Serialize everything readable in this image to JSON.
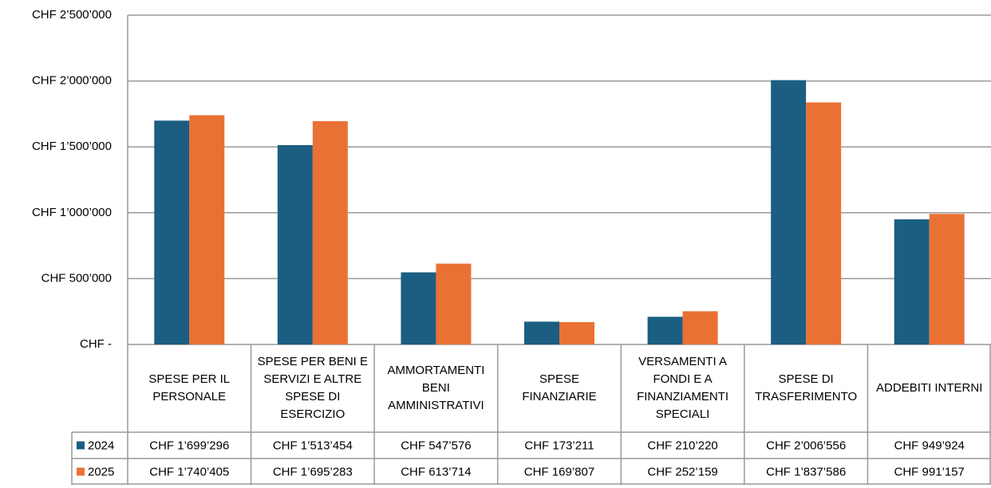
{
  "chart_data": {
    "type": "bar",
    "categories": [
      "SPESE PER IL PERSONALE",
      "SPESE PER BENI E SERVIZI E ALTRE SPESE DI ESERCIZIO",
      "AMMORTAMENTI BENI AMMINISTRATIVI",
      "SPESE FINANZIARIE",
      "VERSAMENTI A FONDI E A FINANZIAMENTI SPECIALI",
      "SPESE DI TRASFERIMENTO",
      "ADDEBITI INTERNI"
    ],
    "series": [
      {
        "name": "2024",
        "color": "#1b5e82",
        "values": [
          1699296,
          1513454,
          547576,
          173211,
          210220,
          2006556,
          949924
        ],
        "value_labels": [
          "CHF 1’699’296",
          "CHF 1’513’454",
          "CHF 547’576",
          "CHF 173’211",
          "CHF 210’220",
          "CHF 2’006’556",
          "CHF 949’924"
        ]
      },
      {
        "name": "2025",
        "color": "#ea7134",
        "values": [
          1740405,
          1695283,
          613714,
          169807,
          252159,
          1837586,
          991157
        ],
        "value_labels": [
          "CHF 1’740’405",
          "CHF 1’695’283",
          "CHF 613’714",
          "CHF 169’807",
          "CHF 252’159",
          "CHF 1’837’586",
          "CHF 991’157"
        ]
      }
    ],
    "ylim": [
      0,
      2500000
    ],
    "yticks": [
      {
        "value": 0,
        "label": "CHF -"
      },
      {
        "value": 500000,
        "label": "CHF 500’000"
      },
      {
        "value": 1000000,
        "label": "CHF 1’000’000"
      },
      {
        "value": 1500000,
        "label": "CHF 1’500’000"
      },
      {
        "value": 2000000,
        "label": "CHF 2’000’000"
      },
      {
        "value": 2500000,
        "label": "CHF 2’500’000"
      }
    ],
    "grid": true
  }
}
